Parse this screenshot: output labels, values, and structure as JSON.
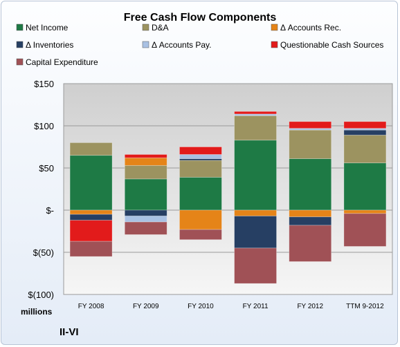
{
  "chart_data": {
    "type": "bar",
    "stacked": true,
    "title": "Free Cash Flow Components",
    "unit_label": "millions",
    "company": "II-VI",
    "categories": [
      "FY 2008",
      "FY 2009",
      "FY 2010",
      "FY 2011",
      "FY 2012",
      "TTM 9-2012"
    ],
    "ylim": [
      -100,
      150
    ],
    "yticks": [
      150,
      100,
      50,
      0,
      -50,
      -100
    ],
    "ytick_labels": [
      "$150",
      "$100",
      "$50",
      "$-",
      "$(50)",
      "$(100)"
    ],
    "grid": true,
    "legend_position": "top",
    "series": [
      {
        "name": "Net Income",
        "color": "#1e7a45",
        "values": [
          65,
          37,
          39,
          83,
          61,
          56
        ]
      },
      {
        "name": "D&A",
        "color": "#9c9360",
        "values": [
          15,
          16,
          20,
          29,
          34,
          33
        ]
      },
      {
        "name": "Δ Accounts Rec.",
        "color": "#e58418",
        "values": [
          -5,
          9,
          -23,
          -7,
          -8,
          -4
        ]
      },
      {
        "name": "Δ Inventories",
        "color": "#263f63",
        "values": [
          -7,
          -7,
          2,
          -38,
          -10,
          6
        ]
      },
      {
        "name": "Δ Accounts Pay.",
        "color": "#a9c1e3",
        "values": [
          0,
          -7,
          5,
          2,
          2,
          2
        ]
      },
      {
        "name": "Questionable Cash Sources",
        "color": "#e21b1b",
        "values": [
          -25,
          4,
          9,
          3,
          8,
          8
        ]
      },
      {
        "name": "Capital Expenditure",
        "color": "#a05156",
        "values": [
          -18,
          -15,
          -12,
          -42,
          -43,
          -39
        ]
      }
    ]
  }
}
